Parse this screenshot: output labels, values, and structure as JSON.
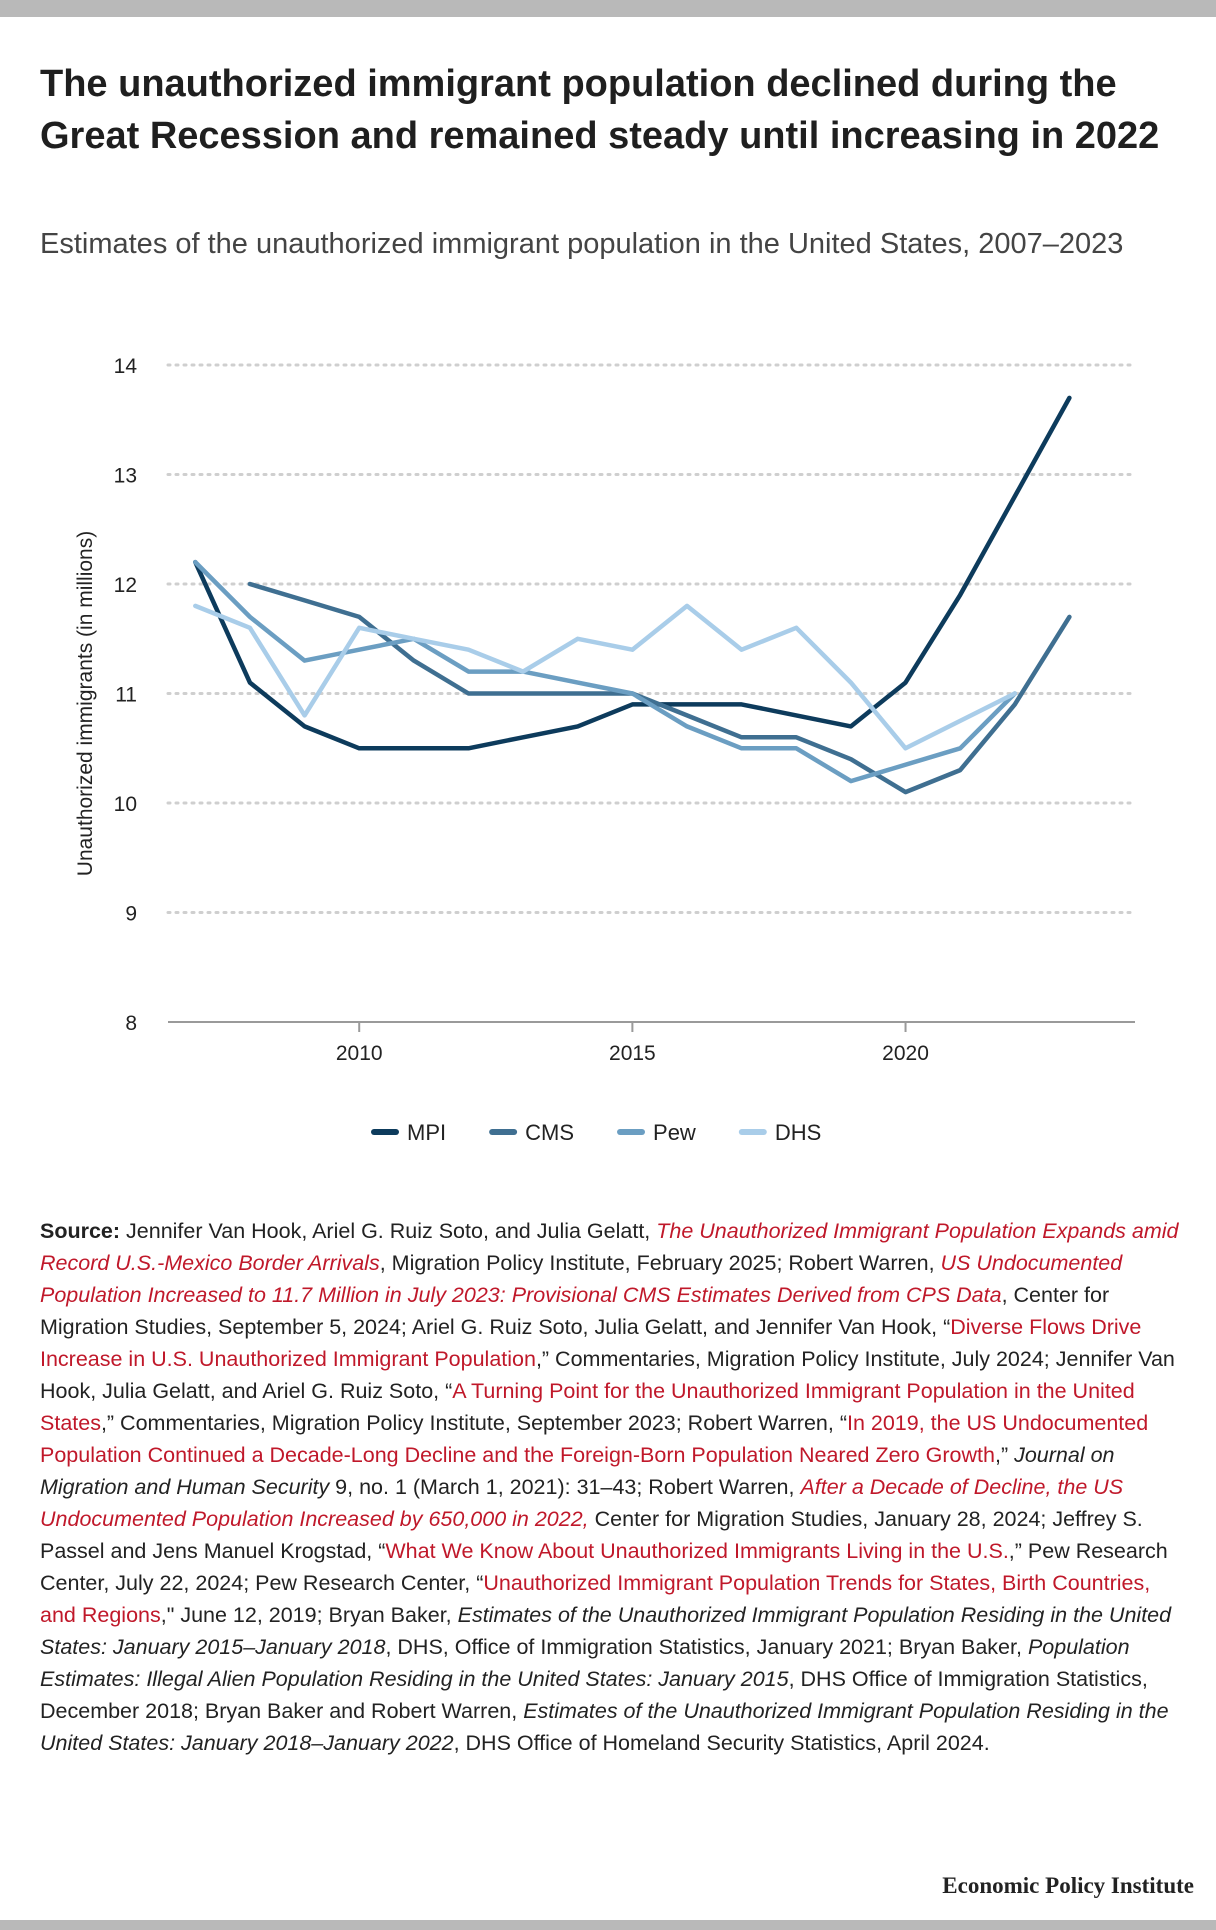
{
  "header": {
    "title": "The unauthorized immigrant population declined during the Great Recession and remained steady until increasing in 2022",
    "subtitle": "Estimates of the unauthorized immigrant population in the United States, 2007–2023"
  },
  "chart_data": {
    "type": "line",
    "ylabel": "Unauthorized immigrants (in millions)",
    "xlabel": "",
    "xlim": [
      2006.5,
      2024.2
    ],
    "ylim": [
      8,
      14
    ],
    "yticks": [
      8,
      9,
      10,
      11,
      12,
      13,
      14
    ],
    "xticks": [
      2010,
      2015,
      2020
    ],
    "grid": "horizontal dotted",
    "legend_position": "bottom-center",
    "series": [
      {
        "name": "MPI",
        "color": "#0d3b5c",
        "points": [
          [
            2007,
            12.2
          ],
          [
            2008,
            11.1
          ],
          [
            2009,
            10.7
          ],
          [
            2010,
            10.5
          ],
          [
            2011,
            10.5
          ],
          [
            2012,
            10.5
          ],
          [
            2013,
            10.6
          ],
          [
            2014,
            10.7
          ],
          [
            2015,
            10.9
          ],
          [
            2016,
            10.9
          ],
          [
            2017,
            10.9
          ],
          [
            2018,
            10.8
          ],
          [
            2019,
            10.7
          ],
          [
            2020,
            11.1
          ],
          [
            2021,
            11.9
          ],
          [
            2022,
            12.8
          ],
          [
            2023,
            13.7
          ]
        ]
      },
      {
        "name": "CMS",
        "color": "#3f6f91",
        "points": [
          [
            2008,
            12.0
          ],
          [
            2009,
            11.85
          ],
          [
            2010,
            11.7
          ],
          [
            2011,
            11.3
          ],
          [
            2012,
            11.0
          ],
          [
            2013,
            11.0
          ],
          [
            2014,
            11.0
          ],
          [
            2015,
            11.0
          ],
          [
            2016,
            10.8
          ],
          [
            2017,
            10.6
          ],
          [
            2018,
            10.6
          ],
          [
            2019,
            10.4
          ],
          [
            2020,
            10.1
          ],
          [
            2021,
            10.3
          ],
          [
            2022,
            10.9
          ],
          [
            2023,
            11.7
          ]
        ]
      },
      {
        "name": "Pew",
        "color": "#6b9ec2",
        "points": [
          [
            2007,
            12.2
          ],
          [
            2008,
            11.7
          ],
          [
            2009,
            11.3
          ],
          [
            2010,
            11.4
          ],
          [
            2011,
            11.5
          ],
          [
            2012,
            11.2
          ],
          [
            2013,
            11.2
          ],
          [
            2014,
            11.1
          ],
          [
            2015,
            11.0
          ],
          [
            2016,
            10.7
          ],
          [
            2017,
            10.5
          ],
          [
            2018,
            10.5
          ],
          [
            2019,
            10.2
          ],
          [
            2021,
            10.5
          ],
          [
            2022,
            11.0
          ]
        ]
      },
      {
        "name": "DHS",
        "color": "#a9cde9",
        "points": [
          [
            2007,
            11.8
          ],
          [
            2008,
            11.6
          ],
          [
            2009,
            10.8
          ],
          [
            2010,
            11.6
          ],
          [
            2011,
            11.5
          ],
          [
            2012,
            11.4
          ],
          [
            2013,
            11.2
          ],
          [
            2014,
            11.5
          ],
          [
            2015,
            11.4
          ],
          [
            2016,
            11.8
          ],
          [
            2017,
            11.4
          ],
          [
            2018,
            11.6
          ],
          [
            2019,
            11.1
          ],
          [
            2020,
            10.5
          ],
          [
            2022,
            11.0
          ]
        ]
      }
    ]
  },
  "source": {
    "label": "Source:",
    "segments": [
      {
        "t": " Jennifer Van Hook, Ariel G. Ruiz Soto, and Julia Gelatt, ",
        "s": "plain"
      },
      {
        "t": "The Unauthorized Immigrant Population Expands amid Record U.S.-Mexico Border Arrivals",
        "s": "link-italic"
      },
      {
        "t": ", Migration Policy Institute, February 2025; Robert Warren, ",
        "s": "plain"
      },
      {
        "t": "US Undocumented Population Increased to 11.7 Million in July 2023: Provisional CMS Estimates Derived from CPS Data",
        "s": "link-italic"
      },
      {
        "t": ", Center for Migration Studies, September 5, 2024; Ariel G. Ruiz Soto, Julia Gelatt, and Jennifer Van Hook, “",
        "s": "plain"
      },
      {
        "t": "Diverse Flows Drive Increase in U.S. Unauthorized Immigrant Population",
        "s": "link"
      },
      {
        "t": ",” Commentaries, Migration Policy Institute, July 2024; Jennifer Van Hook, Julia Gelatt, and Ariel G. Ruiz Soto, “",
        "s": "plain"
      },
      {
        "t": "A Turning Point for the Unauthorized Immigrant Population in the United States",
        "s": "link"
      },
      {
        "t": ",” Commentaries, Migration Policy Institute, September 2023; Robert Warren, “",
        "s": "plain"
      },
      {
        "t": "In 2019, the US Undocumented Population Continued a Decade-Long Decline and the Foreign-Born Population Neared Zero Growth",
        "s": "link"
      },
      {
        "t": ",” ",
        "s": "plain"
      },
      {
        "t": "Journal on Migration and Human Security",
        "s": "italic"
      },
      {
        "t": " 9, no. 1 (March 1, 2021): 31–43; Robert Warren, ",
        "s": "plain"
      },
      {
        "t": "After a Decade of Decline, the US Undocumented Population Increased by 650,000 in 2022,",
        "s": "link-italic"
      },
      {
        "t": " Center for Migration Studies, January 28, 2024; Jeffrey S. Passel and Jens Manuel Krogstad, “",
        "s": "plain"
      },
      {
        "t": "What We Know About Unauthorized Immigrants Living in the U.S.",
        "s": "link"
      },
      {
        "t": ",” Pew Research Center, July 22, 2024; Pew Research Center, “",
        "s": "plain"
      },
      {
        "t": "Unauthorized Immigrant Population Trends for States, Birth Countries, and Regions",
        "s": "link"
      },
      {
        "t": ",\" June 12, 2019; Bryan Baker, ",
        "s": "plain"
      },
      {
        "t": "Estimates of the Unauthorized Immigrant Population Residing in the United States: January 2015–January 2018",
        "s": "italic"
      },
      {
        "t": ", DHS, Office of Immigration Statistics, January 2021; Bryan Baker, ",
        "s": "plain"
      },
      {
        "t": "Population Estimates: Illegal Alien Population Residing in the United States: January 2015",
        "s": "italic"
      },
      {
        "t": ", DHS Office of Immigration Statistics, December 2018; Bryan Baker and Robert Warren, ",
        "s": "plain"
      },
      {
        "t": "Estimates of the Unauthorized Immigrant Population Residing in the United States: January 2018–January 2022",
        "s": "italic"
      },
      {
        "t": ", DHS Office of Homeland Security Statistics, April 2024.",
        "s": "plain"
      }
    ]
  },
  "footer": {
    "logo_text": "Economic Policy Institute"
  }
}
